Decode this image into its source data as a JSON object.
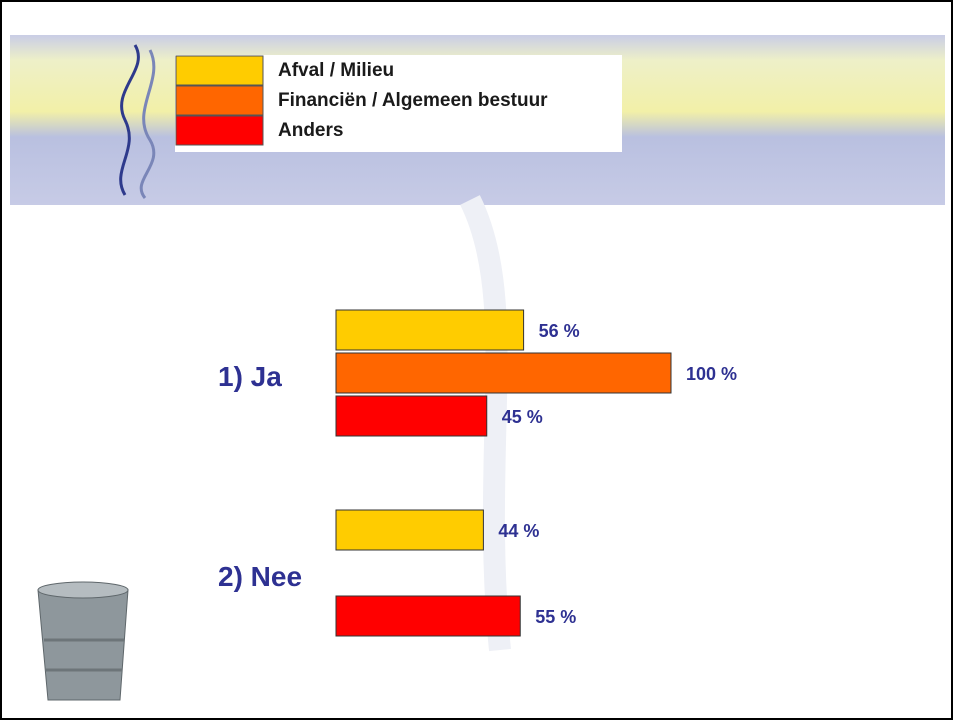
{
  "chart_data": {
    "type": "bar",
    "orientation": "horizontal",
    "categories": [
      "1) Ja",
      "2) Nee"
    ],
    "series": [
      {
        "name": "Afval / Milieu",
        "color": "#ffcc00",
        "values": [
          56,
          44
        ],
        "value_labels": [
          "56 %",
          "44 %"
        ]
      },
      {
        "name": "Financiën / Algemeen bestuur",
        "color": "#ff6600",
        "values": [
          100,
          null
        ],
        "value_labels": [
          "100 %",
          null
        ]
      },
      {
        "name": "Anders",
        "color": "#ff0000",
        "values": [
          45,
          55
        ],
        "value_labels": [
          "45 %",
          "55 %"
        ]
      }
    ],
    "legend": "top-left"
  }
}
